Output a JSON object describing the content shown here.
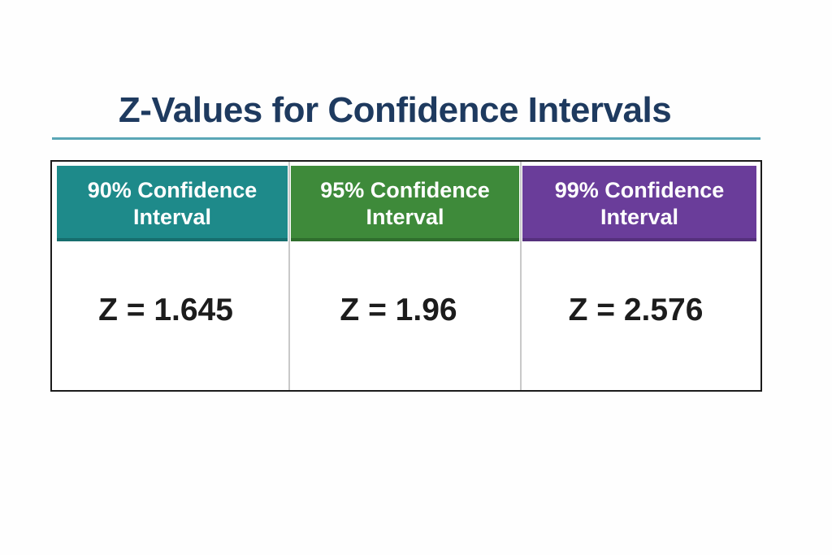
{
  "title": "Z-Values for Confidence Intervals",
  "colors": {
    "title": "#1e3a5f",
    "rule": "#5aa6b6",
    "border": "#1b1b1b"
  },
  "columns": [
    {
      "header": "90% Confidence Interval",
      "value": "Z = 1.645",
      "color": "#1e8a8a",
      "shadow": "#166e6e"
    },
    {
      "header": "95% Confidence Interval",
      "value": "Z = 1.96",
      "color": "#3e8a3a",
      "shadow": "#2f6e2d"
    },
    {
      "header": "99% Confidence Interval",
      "value": "Z = 2.576",
      "color": "#6a3d9a",
      "shadow": "#55307c"
    }
  ]
}
